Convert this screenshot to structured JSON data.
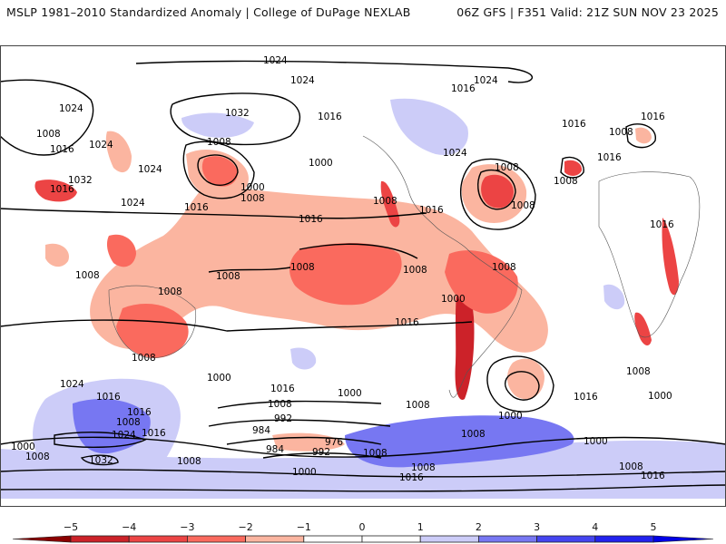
{
  "header": {
    "title": "MSLP 1981–2010 Standardized Anomaly | College of DuPage NEXLAB",
    "run_info": "06Z GFS | F351 Valid: 21Z SUN NOV 23 2025"
  },
  "map": {
    "projection": "global cylindrical",
    "field": "MSLP standardized anomaly (shaded) with MSLP isobars (contours, hPa)",
    "contour_interval_hpa": 8,
    "isobar_labels": [
      {
        "value": "1024",
        "region": "arctic-north-pacific"
      },
      {
        "value": "1024",
        "region": "siberia-north"
      },
      {
        "value": "1024",
        "region": "arctic-canada"
      },
      {
        "value": "1024",
        "region": "greenland-north"
      },
      {
        "value": "1016",
        "region": "greenland-west"
      },
      {
        "value": "1024",
        "region": "russia-west"
      },
      {
        "value": "1008",
        "region": "central-asia-north"
      },
      {
        "value": "1016",
        "region": "central-asia"
      },
      {
        "value": "1024",
        "region": "mongolia"
      },
      {
        "value": "1032",
        "region": "tibet"
      },
      {
        "value": "1016",
        "region": "himalaya"
      },
      {
        "value": "1024",
        "region": "east-china"
      },
      {
        "value": "1024",
        "region": "japan"
      },
      {
        "value": "1032",
        "region": "bering-sea"
      },
      {
        "value": "1016",
        "region": "alaska-south"
      },
      {
        "value": "1016",
        "region": "alaska-east"
      },
      {
        "value": "1008",
        "region": "north-pacific-west"
      },
      {
        "value": "1000",
        "region": "gulf-of-alaska"
      },
      {
        "value": "1000",
        "region": "north-pacific-low"
      },
      {
        "value": "1008",
        "region": "north-pacific-low-outer"
      },
      {
        "value": "1016",
        "region": "north-pacific-south"
      },
      {
        "value": "1016",
        "region": "east-pacific"
      },
      {
        "value": "1024",
        "region": "hudson-bay"
      },
      {
        "value": "1016",
        "region": "us-southeast"
      },
      {
        "value": "1008",
        "region": "mexico"
      },
      {
        "value": "1008",
        "region": "labrador-sea"
      },
      {
        "value": "1008",
        "region": "north-atlantic-low"
      },
      {
        "value": "1016",
        "region": "iceland"
      },
      {
        "value": "1016",
        "region": "scandinavia"
      },
      {
        "value": "1008",
        "region": "baltic-low"
      },
      {
        "value": "1016",
        "region": "central-europe"
      },
      {
        "value": "1008",
        "region": "iberia-low"
      },
      {
        "value": "1016",
        "region": "east-africa"
      },
      {
        "value": "1008",
        "region": "bay-of-bengal"
      },
      {
        "value": "1008",
        "region": "indonesia"
      },
      {
        "value": "1008",
        "region": "western-pacific"
      },
      {
        "value": "1008",
        "region": "central-pacific"
      },
      {
        "value": "1008",
        "region": "central-pacific-east"
      },
      {
        "value": "1008",
        "region": "amazon"
      },
      {
        "value": "1000",
        "region": "andes"
      },
      {
        "value": "1016",
        "region": "south-pacific"
      },
      {
        "value": "1008",
        "region": "australia-south"
      },
      {
        "value": "1000",
        "region": "tasman-sea"
      },
      {
        "value": "1024",
        "region": "south-indian-ocean"
      },
      {
        "value": "1016",
        "region": "south-indian-ocean-east"
      },
      {
        "value": "1016",
        "region": "southern-ocean-indian"
      },
      {
        "value": "1008",
        "region": "southern-ocean-indian-south"
      },
      {
        "value": "1024",
        "region": "antarctica-indian"
      },
      {
        "value": "1016",
        "region": "antarctica-indian-east"
      },
      {
        "value": "1032",
        "region": "east-antarctica"
      },
      {
        "value": "1000",
        "region": "southern-ocean-west"
      },
      {
        "value": "1008",
        "region": "southern-ocean-west-south"
      },
      {
        "value": "1008",
        "region": "ross-sea"
      },
      {
        "value": "1016",
        "region": "south-pacific-mid"
      },
      {
        "value": "1008",
        "region": "south-pacific-mid-south"
      },
      {
        "value": "1000",
        "region": "amundsen-sea"
      },
      {
        "value": "992",
        "region": "amundsen-low-outer"
      },
      {
        "value": "984",
        "region": "amundsen-low-west"
      },
      {
        "value": "976",
        "region": "amundsen-low-core"
      },
      {
        "value": "984",
        "region": "amundsen-low-south"
      },
      {
        "value": "992",
        "region": "bellingshausen"
      },
      {
        "value": "1000",
        "region": "antarctic-coast-pacific"
      },
      {
        "value": "1008",
        "region": "drake-passage"
      },
      {
        "value": "1008",
        "region": "weddell-sea"
      },
      {
        "value": "1008",
        "region": "antarctica-atlantic"
      },
      {
        "value": "1016",
        "region": "antarctica-atlantic-south"
      },
      {
        "value": "1008",
        "region": "south-atlantic"
      },
      {
        "value": "1000",
        "region": "south-atlantic-low"
      },
      {
        "value": "1016",
        "region": "south-atlantic-east"
      },
      {
        "value": "1008",
        "region": "south-indian-west"
      },
      {
        "value": "1000",
        "region": "southern-ocean-africa"
      },
      {
        "value": "1000",
        "region": "antarctic-coast-africa"
      },
      {
        "value": "1008",
        "region": "antarctica-east-coast"
      },
      {
        "value": "1016",
        "region": "antarctica-east-south"
      }
    ]
  },
  "colorbar": {
    "ticks": [
      "−5",
      "−4",
      "−3",
      "−2",
      "−1",
      "0",
      "1",
      "2",
      "3",
      "4",
      "5"
    ],
    "segments": [
      {
        "range": "< -5",
        "color": "#8b0000"
      },
      {
        "range": "-5 to -4",
        "color": "#cc2229"
      },
      {
        "range": "-4 to -3",
        "color": "#ec4444"
      },
      {
        "range": "-3 to -2",
        "color": "#fa6a5e"
      },
      {
        "range": "-2 to -1",
        "color": "#fbb5a0"
      },
      {
        "range": "-1 to 0",
        "color": "#ffffff"
      },
      {
        "range": "0 to 1",
        "color": "#ffffff"
      },
      {
        "range": "1 to 2",
        "color": "#ccccf8"
      },
      {
        "range": "2 to 3",
        "color": "#7777f2"
      },
      {
        "range": "3 to 4",
        "color": "#4444f0"
      },
      {
        "range": "4 to 5",
        "color": "#2222ee"
      },
      {
        "range": "> 5",
        "color": "#0000e6"
      }
    ]
  }
}
